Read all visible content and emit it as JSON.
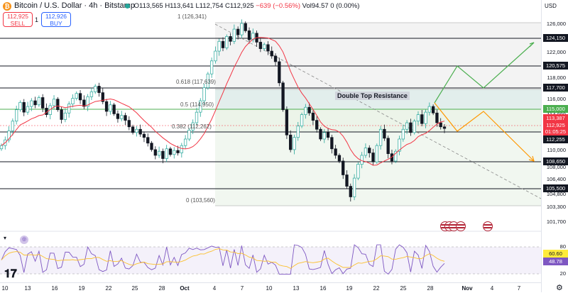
{
  "header": {
    "coin_glyph": "₿",
    "title": "Bitcoin / U.S. Dollar · 4h · Bitstamp",
    "ohlc_o": "O113,565",
    "ohlc_h": "H113,641",
    "ohlc_l": "L112,754",
    "ohlc_c": "C112,925",
    "change": "−639 (−0.56%)",
    "volume": "Vol94.57",
    "volume_change": "0 (0.00%)",
    "sell_price": "112,925",
    "sell_label": "SELL",
    "spread": "1",
    "buy_price": "112,926",
    "buy_label": "BUY"
  },
  "price_scale": {
    "currency": "USD",
    "ticks": [
      "126,000",
      "124,000",
      "122,000",
      "120,000",
      "118,000",
      "116,000",
      "114,000",
      "112,000",
      "110,000",
      "108,000",
      "106,400",
      "104,800",
      "103,300",
      "101,700"
    ],
    "levels": [
      {
        "label": "124,150",
        "color": "#131722",
        "text": "#ffffff"
      },
      {
        "label": "120,575",
        "color": "#131722",
        "text": "#ffffff"
      },
      {
        "label": "117,700",
        "color": "#131722",
        "text": "#ffffff"
      },
      {
        "label": "115,000",
        "color": "#4caf50",
        "text": "#ffffff"
      },
      {
        "label": "113,387",
        "color": "#f23645",
        "text": "#ffffff"
      },
      {
        "label": "112,925",
        "color": "#f23645",
        "text": "#ffffff"
      },
      {
        "label": "01:05:25",
        "color": "#f23645",
        "text": "#ffffff"
      },
      {
        "label": "112,255",
        "color": "#131722",
        "text": "#ffffff"
      },
      {
        "label": "108,650",
        "color": "#131722",
        "text": "#ffffff"
      },
      {
        "label": "105,500",
        "color": "#131722",
        "text": "#ffffff"
      }
    ],
    "rsi_ticks": [
      "80",
      "20"
    ],
    "rsi_labels": [
      {
        "label": "60.60",
        "color": "#ffeb3b",
        "text": "#131722"
      },
      {
        "label": "48.78",
        "color": "#7e57c2",
        "text": "#ffffff"
      }
    ]
  },
  "fib": {
    "level_1": "1 (126,341)",
    "level_0618": "0.618 (117,639)",
    "level_05": "0.5 (114,950)",
    "level_0382": "0.382 (112,262)",
    "level_0": "0 (103,560)"
  },
  "annotation": {
    "double_top": "Double Top Resistance"
  },
  "time_axis": {
    "ticks": [
      "10",
      "13",
      "16",
      "19",
      "22",
      "25",
      "28",
      "Oct",
      "4",
      "7",
      "10",
      "13",
      "16",
      "19",
      "22",
      "25",
      "28",
      "Nov",
      "4",
      "7"
    ]
  },
  "colors": {
    "up": "#26a69a",
    "down": "#131722",
    "ma": "#f23645",
    "green_path": "#4caf50",
    "orange_path": "#ff9800",
    "rsi": "#7e57c2",
    "rsi_ma": "#ffeb3b"
  },
  "icons": {
    "logo": "tradingview-logo",
    "settings": "gear-icon",
    "flags": "us-flag-icon"
  }
}
